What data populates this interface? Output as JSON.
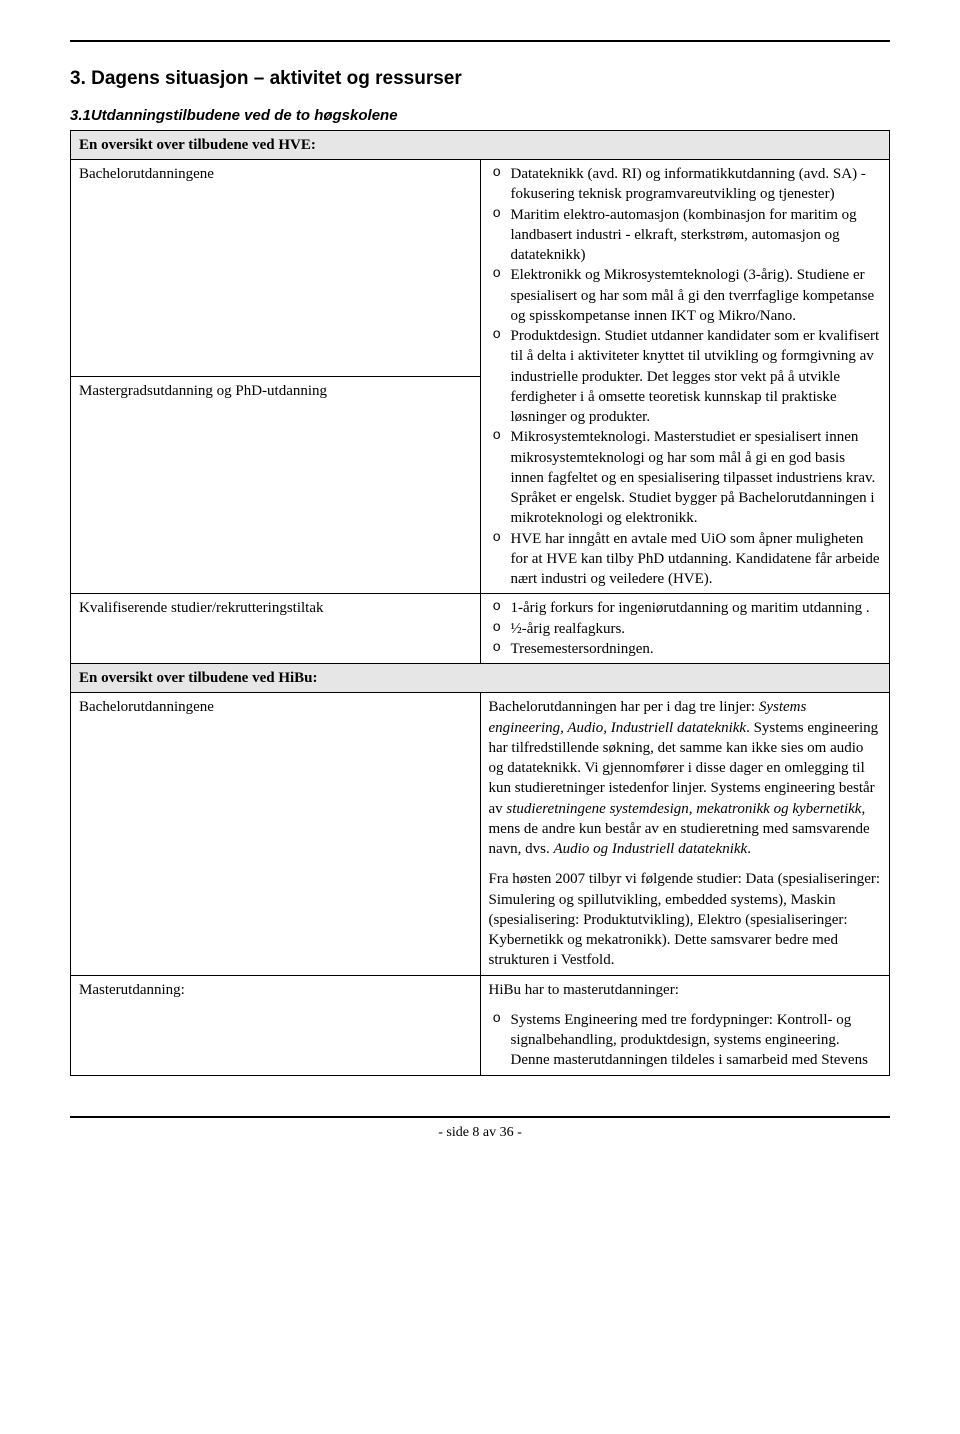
{
  "section_title": "3. Dagens situasjon – aktivitet og ressurser",
  "subsection_title": "3.1Utdanningstilbudene ved de to høgskolene",
  "table": {
    "header1": "En oversikt over tilbudene ved HVE:",
    "row1": {
      "label": "Bachelorutdanningene",
      "bullets": [
        "Datateknikk (avd. RI) og informatikkutdanning (avd. SA) - fokusering teknisk programvareutvikling og tjenester)",
        "Maritim elektro-automasjon (kombinasjon for maritim og landbasert industri - elkraft, sterkstrøm, automasjon og datateknikk)",
        "Elektronikk og Mikrosystemteknologi (3-årig).  Studiene er spesialisert og har som mål å gi den tverrfaglige kompetanse og spisskompetanse innen IKT og Mikro/Nano.",
        "Produktdesign. Studiet utdanner kandidater som er kvalifisert til å delta i aktiviteter knyttet til utvikling og formgivning av industrielle produkter. Det legges stor vekt på å utvikle ferdigheter i å omsette teoretisk kunnskap til praktiske løsninger og produkter."
      ]
    },
    "row2": {
      "label": "Mastergradsutdanning og PhD-utdanning",
      "bullets": [
        "Mikrosystemteknologi.  Masterstudiet er spesialisert innen mikrosystemteknologi og har som mål å gi en god basis innen fagfeltet og en spesialisering tilpasset industriens krav. Språket er engelsk. Studiet bygger på Bachelorutdanningen i mikroteknologi og elektronikk.",
        "HVE har inngått en avtale med UiO som åpner muligheten for at HVE kan tilby PhD utdanning. Kandidatene får arbeide nært industri og veiledere (HVE)."
      ]
    },
    "row3": {
      "label": "Kvalifiserende studier/rekrutteringstiltak",
      "bullets": [
        "1-årig forkurs for ingeniørutdanning og maritim utdanning .",
        "½-årig realfagkurs.",
        "Tresemestersordningen."
      ]
    },
    "header2": "En oversikt over tilbudene ved HiBu:",
    "row4": {
      "label": "Bachelorutdanningene",
      "para1_pre": "Bachelorutdanningen har per i dag tre linjer: ",
      "para1_italic1": "Systems engineering, Audio, Industriell datateknikk",
      "para1_mid": ". Systems engineering har tilfredstillende søkning, det samme kan ikke sies om audio og datateknikk. Vi gjennomfører i disse dager en omlegging til kun  studieretninger  istedenfor linjer. Systems engineering består av ",
      "para1_italic2": "studieretningene systemdesign, mekatronikk og kybernetikk",
      "para1_mid2": ", mens de andre kun består av en studieretning med samsvarende navn, dvs. ",
      "para1_italic3": "Audio og Industriell datateknikk",
      "para1_end": ".",
      "para2": "Fra høsten 2007 tilbyr vi følgende studier: Data (spesialiseringer: Simulering og spillutvikling, embedded systems), Maskin (spesialisering: Produktutvikling), Elektro (spesialiseringer: Kybernetikk og mekatronikk). Dette samsvarer bedre med strukturen i Vestfold."
    },
    "row5": {
      "label": "Masterutdanning:",
      "intro": "HiBu har to masterutdanninger:",
      "bullets": [
        "Systems Engineering med tre fordypninger: Kontroll- og signalbehandling, produktdesign, systems engineering. Denne masterutdanningen tildeles i samarbeid med Stevens"
      ]
    }
  },
  "footer": "- side 8 av 36 -"
}
